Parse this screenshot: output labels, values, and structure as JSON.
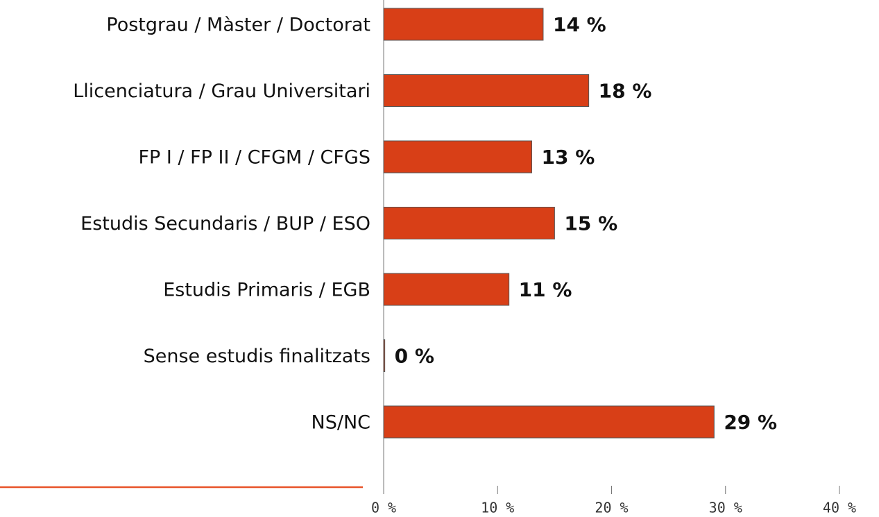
{
  "chart_data": {
    "type": "barh",
    "categories": [
      "Postgrau / Màster / Doctorat",
      "Llicenciatura / Grau Universitari",
      "FP I / FP II / CFGM / CFGS",
      "Estudis Secundaris / BUP / ESO",
      "Estudis Primaris / EGB",
      "Sense estudis finalitzats",
      "NS/NC"
    ],
    "values": [
      14,
      18,
      13,
      15,
      11,
      0.1,
      29
    ],
    "value_labels": [
      "14 %",
      "18 %",
      "13 %",
      "15 %",
      "11 %",
      "0 %",
      "29 %"
    ],
    "color": "#d83f17",
    "xlim": [
      0,
      40
    ],
    "xticks": [
      {
        "value": 0,
        "label": "0 %"
      },
      {
        "value": 10,
        "label": "10 %"
      },
      {
        "value": 20,
        "label": "20 %"
      },
      {
        "value": 30,
        "label": "30 %"
      },
      {
        "value": 40,
        "label": "40 %"
      }
    ]
  }
}
